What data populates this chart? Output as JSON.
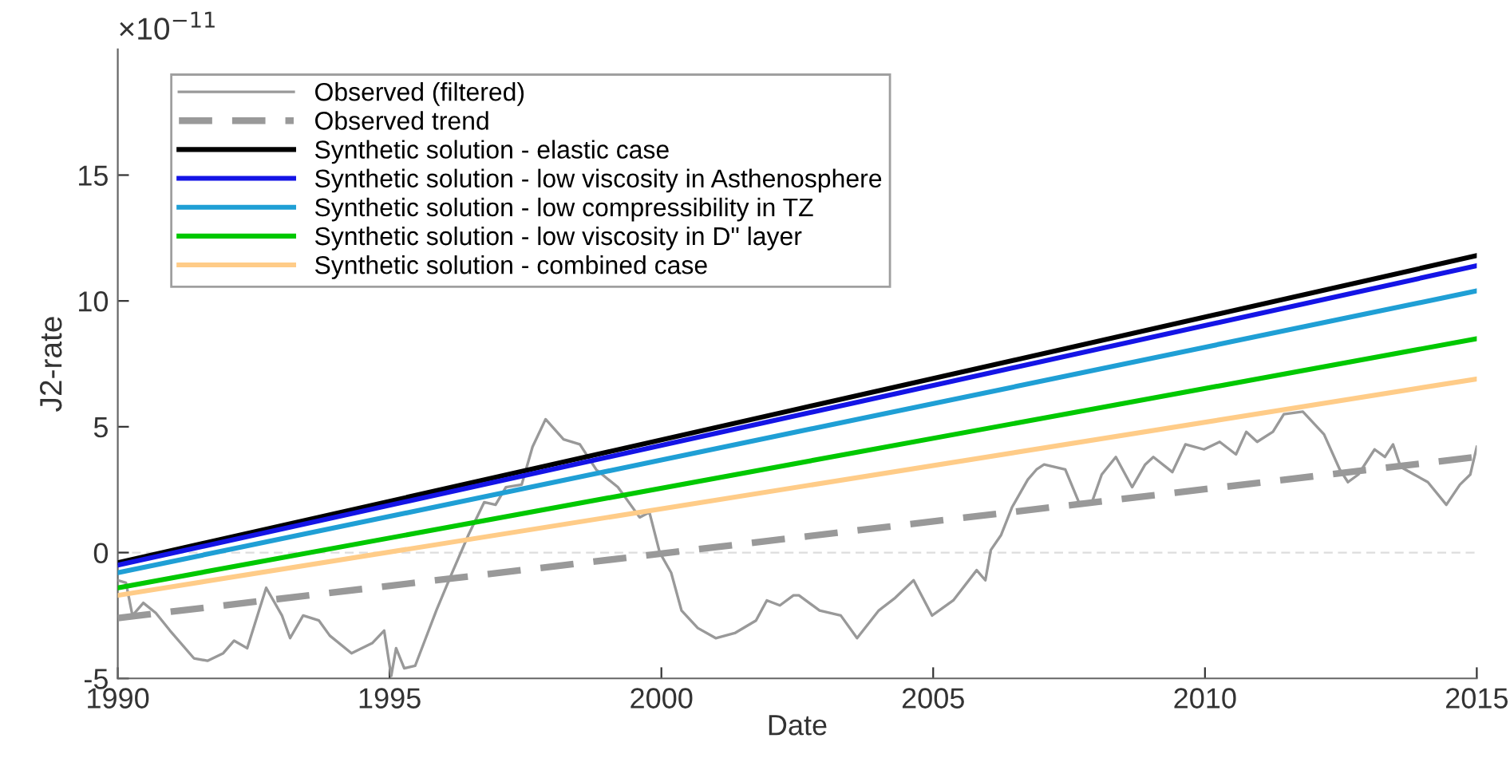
{
  "chart_data": {
    "type": "line",
    "xlabel": "Date",
    "ylabel": "J2-rate",
    "annotations": [
      "×10$^{−11}$"
    ],
    "xlim": [
      1990,
      2015
    ],
    "xticks": [
      1990,
      1995,
      2000,
      2005,
      2010,
      2015
    ],
    "ylim": [
      -5,
      20
    ],
    "yticks": [
      -5,
      0,
      5,
      10,
      15
    ],
    "grid": false,
    "legend": "top left",
    "marker": "none",
    "ref_lines": [
      {
        "axis": "y",
        "value": 0,
        "label": null,
        "color": "#dddddd",
        "line_style": "dashed"
      }
    ],
    "series": [
      {
        "name": "Observed (filtered)",
        "color": "#999999",
        "line_style": "solid",
        "x": [
          1990.0,
          1990.15,
          1990.27,
          1990.47,
          1990.7,
          1990.96,
          1991.4,
          1991.65,
          1991.94,
          1992.14,
          1992.38,
          1992.73,
          1993.02,
          1993.17,
          1993.41,
          1993.7,
          1993.9,
          1994.3,
          1994.68,
          1994.9,
          1995.03,
          1995.12,
          1995.27,
          1995.47,
          1995.86,
          1996.15,
          1996.45,
          1996.74,
          1996.95,
          1997.14,
          1997.43,
          1997.63,
          1997.87,
          1998.2,
          1998.5,
          1998.8,
          1999.2,
          1999.6,
          1999.78,
          1999.97,
          2000.18,
          2000.37,
          2000.67,
          2001.0,
          2001.35,
          2001.74,
          2001.94,
          2002.18,
          2002.43,
          2002.53,
          2002.91,
          2003.3,
          2003.6,
          2004.0,
          2004.3,
          2004.64,
          2004.98,
          2005.37,
          2005.8,
          2005.96,
          2006.06,
          2006.25,
          2006.45,
          2006.74,
          2006.9,
          2007.04,
          2007.43,
          2007.68,
          2007.92,
          2008.1,
          2008.36,
          2008.66,
          2008.9,
          2009.05,
          2009.4,
          2009.64,
          2009.98,
          2010.27,
          2010.57,
          2010.76,
          2010.96,
          2011.25,
          2011.45,
          2011.8,
          2012.19,
          2012.48,
          2012.63,
          2012.82,
          2013.12,
          2013.31,
          2013.46,
          2013.6,
          2013.85,
          2014.1,
          2014.44,
          2014.69,
          2014.88,
          2015.0
        ],
        "values": [
          -1.1,
          -1.2,
          -2.5,
          -2.0,
          -2.4,
          -3.1,
          -4.2,
          -4.3,
          -4.0,
          -3.5,
          -3.8,
          -1.4,
          -2.5,
          -3.4,
          -2.5,
          -2.7,
          -3.3,
          -4.0,
          -3.6,
          -3.1,
          -4.9,
          -3.8,
          -4.6,
          -4.5,
          -2.3,
          -0.8,
          0.7,
          2.0,
          1.9,
          2.6,
          2.7,
          4.2,
          5.3,
          4.5,
          4.3,
          3.3,
          2.6,
          1.4,
          1.6,
          0.0,
          -0.8,
          -2.3,
          -3.0,
          -3.4,
          -3.2,
          -2.7,
          -1.9,
          -2.1,
          -1.7,
          -1.7,
          -2.3,
          -2.5,
          -3.4,
          -2.3,
          -1.8,
          -1.1,
          -2.5,
          -1.9,
          -0.7,
          -1.1,
          0.1,
          0.7,
          1.8,
          2.9,
          3.3,
          3.5,
          3.3,
          2.0,
          2.0,
          3.1,
          3.8,
          2.6,
          3.5,
          3.8,
          3.2,
          4.3,
          4.1,
          4.4,
          3.9,
          4.8,
          4.4,
          4.8,
          5.5,
          5.6,
          4.7,
          3.3,
          2.8,
          3.1,
          4.1,
          3.8,
          4.3,
          3.4,
          3.1,
          2.8,
          1.9,
          2.7,
          3.1,
          4.2
        ]
      },
      {
        "name": "Observed trend",
        "color": "#999999",
        "line_style": "dashed",
        "x": [
          1990,
          2015
        ],
        "values": [
          -2.6,
          3.8
        ]
      },
      {
        "name": "Synthetic solution - elastic case",
        "color": "#000000",
        "line_style": "solid",
        "x": [
          1990,
          2015
        ],
        "values": [
          -0.4,
          11.8
        ]
      },
      {
        "name": "Synthetic solution - low viscosity in Asthenosphere",
        "color": "#1414e6",
        "line_style": "solid",
        "x": [
          1990,
          2015
        ],
        "values": [
          -0.5,
          11.4
        ]
      },
      {
        "name": "Synthetic solution - low compressibility in TZ",
        "color": "#1f9fd5",
        "line_style": "solid",
        "x": [
          1990,
          2015
        ],
        "values": [
          -0.8,
          10.4
        ]
      },
      {
        "name": "Synthetic solution - low viscosity in D\" layer",
        "color": "#00c800",
        "line_style": "solid",
        "x": [
          1990,
          2015
        ],
        "values": [
          -1.4,
          8.5
        ]
      },
      {
        "name": "Synthetic solution - combined case",
        "color": "#ffcc88",
        "line_style": "solid",
        "x": [
          1990,
          2015
        ],
        "values": [
          -1.7,
          6.9
        ]
      }
    ]
  }
}
